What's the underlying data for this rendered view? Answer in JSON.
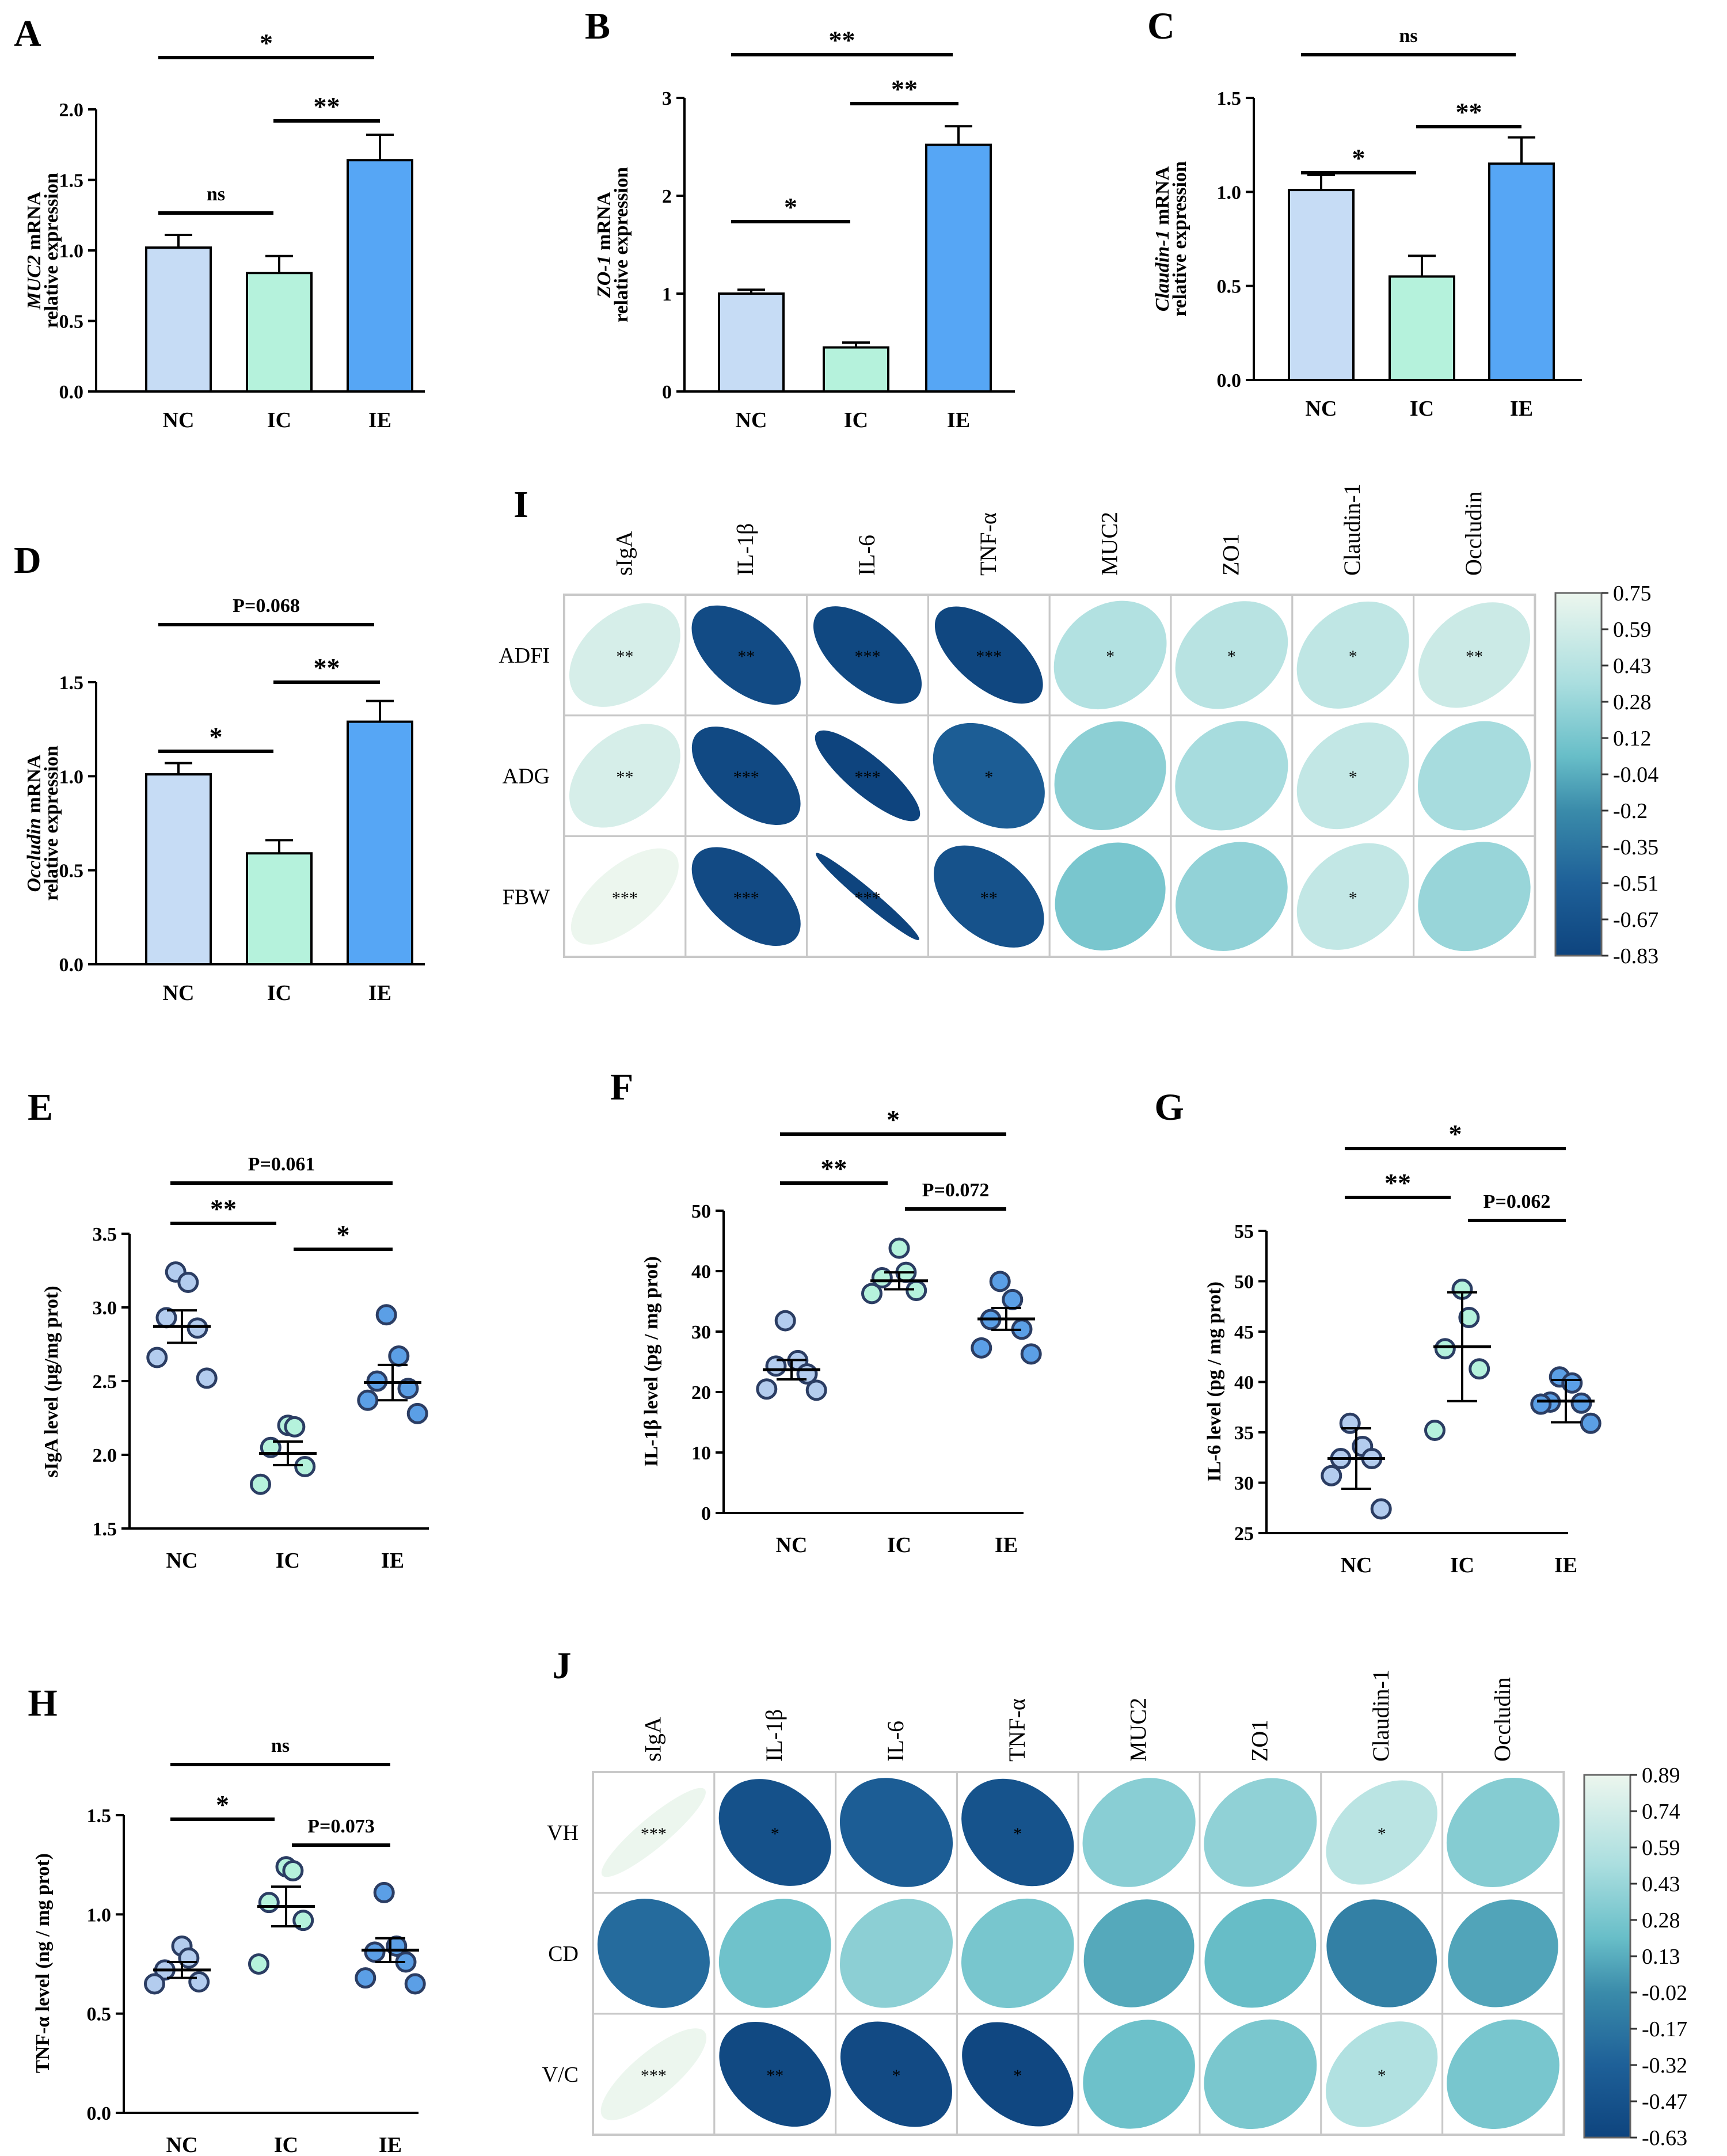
{
  "chart_data": [
    {
      "panel": "A",
      "type": "bar",
      "ylabel_main": "MUC2",
      "ylabel_suffix": " mRNA",
      "ylabel_line2": "relative expression",
      "categories": [
        "NC",
        "IC",
        "IE"
      ],
      "values": [
        1.02,
        0.84,
        1.64
      ],
      "errors": [
        0.09,
        0.12,
        0.18
      ],
      "colors": [
        "#c6dcf5",
        "#b5f2dc",
        "#56a6f5"
      ],
      "ylim": [
        0,
        2.0
      ],
      "ticks": [
        "0.0",
        "0.5",
        "1.0",
        "1.5",
        "2.0"
      ],
      "sig": [
        {
          "from": 0,
          "to": 2,
          "label": "*"
        },
        {
          "from": 1,
          "to": 2,
          "label": "**"
        },
        {
          "from": 0,
          "to": 1,
          "label": "ns"
        }
      ]
    },
    {
      "panel": "B",
      "type": "bar",
      "ylabel_main": "ZO-1",
      "ylabel_suffix": " mRNA",
      "ylabel_line2": "relative expression",
      "categories": [
        "NC",
        "IC",
        "IE"
      ],
      "values": [
        1.0,
        0.45,
        2.52
      ],
      "errors": [
        0.04,
        0.05,
        0.19
      ],
      "colors": [
        "#c6dcf5",
        "#b5f2dc",
        "#56a6f5"
      ],
      "ylim": [
        0,
        3
      ],
      "ticks": [
        "0",
        "1",
        "2",
        "3"
      ],
      "sig": [
        {
          "from": 0,
          "to": 2,
          "label": "**"
        },
        {
          "from": 1,
          "to": 2,
          "label": "**"
        },
        {
          "from": 0,
          "to": 1,
          "label": "*"
        }
      ]
    },
    {
      "panel": "C",
      "type": "bar",
      "ylabel_main": "Claudin-1",
      "ylabel_suffix": " mRNA",
      "ylabel_line2": "relative expression",
      "categories": [
        "NC",
        "IC",
        "IE"
      ],
      "values": [
        1.01,
        0.55,
        1.15
      ],
      "errors": [
        0.08,
        0.11,
        0.14
      ],
      "colors": [
        "#c6dcf5",
        "#b5f2dc",
        "#56a6f5"
      ],
      "ylim": [
        0,
        1.5
      ],
      "ticks": [
        "0.0",
        "0.5",
        "1.0",
        "1.5"
      ],
      "sig": [
        {
          "from": 0,
          "to": 2,
          "label": "ns"
        },
        {
          "from": 1,
          "to": 2,
          "label": "**"
        },
        {
          "from": 0,
          "to": 1,
          "label": "*"
        }
      ]
    },
    {
      "panel": "D",
      "type": "bar",
      "ylabel_main": "Occludin",
      "ylabel_suffix": " mRNA",
      "ylabel_line2": "relative expression",
      "categories": [
        "NC",
        "IC",
        "IE"
      ],
      "values": [
        1.01,
        0.59,
        1.29
      ],
      "errors": [
        0.06,
        0.07,
        0.11
      ],
      "colors": [
        "#c6dcf5",
        "#b5f2dc",
        "#56a6f5"
      ],
      "ylim": [
        0,
        1.5
      ],
      "ticks": [
        "0.0",
        "0.5",
        "1.0",
        "1.5"
      ],
      "sig": [
        {
          "from": 0,
          "to": 2,
          "label": "P=0.068"
        },
        {
          "from": 1,
          "to": 2,
          "label": "**"
        },
        {
          "from": 0,
          "to": 1,
          "label": "*"
        }
      ]
    },
    {
      "panel": "E",
      "type": "scatter",
      "ylabel": "sIgA level (μg/mg prot)",
      "categories": [
        "NC",
        "IC",
        "IE"
      ],
      "points": [
        [
          3.24,
          3.17,
          2.93,
          2.86,
          2.66,
          2.52
        ],
        [
          2.2,
          2.19,
          2.05,
          1.92,
          1.8
        ],
        [
          2.95,
          2.67,
          2.5,
          2.45,
          2.37,
          2.28
        ]
      ],
      "means": [
        2.87,
        2.01,
        2.49
      ],
      "errors": [
        0.11,
        0.08,
        0.12
      ],
      "colors": [
        "#b3ccee",
        "#b5f2dc",
        "#5b9fe6"
      ],
      "ylim": [
        1.5,
        3.5
      ],
      "ticks": [
        "1.5",
        "2.0",
        "2.5",
        "3.0",
        "3.5"
      ],
      "sig": [
        {
          "from": 0,
          "to": 2,
          "label": "P=0.061"
        },
        {
          "from": 0,
          "to": 1,
          "label": "**"
        },
        {
          "from": 1,
          "to": 2,
          "label": "*"
        }
      ]
    },
    {
      "panel": "F",
      "type": "scatter",
      "ylabel": "IL-1β level (pg / mg prot)",
      "categories": [
        "NC",
        "IC",
        "IE"
      ],
      "points": [
        [
          31.8,
          25.2,
          24.3,
          23.0,
          20.5,
          20.3
        ],
        [
          43.8,
          39.8,
          38.9,
          36.8,
          36.3
        ],
        [
          38.3,
          35.3,
          32.0,
          30.4,
          27.3,
          26.3
        ]
      ],
      "means": [
        23.7,
        38.4,
        32.1
      ],
      "errors": [
        1.6,
        1.4,
        1.8
      ],
      "colors": [
        "#b3ccee",
        "#b5f2dc",
        "#5b9fe6"
      ],
      "ylim": [
        0,
        50
      ],
      "ticks": [
        "0",
        "10",
        "20",
        "30",
        "40",
        "50"
      ],
      "sig": [
        {
          "from": 0,
          "to": 2,
          "label": "*"
        },
        {
          "from": 0,
          "to": 1,
          "label": "**"
        },
        {
          "from": 1,
          "to": 2,
          "label": "P=0.072"
        }
      ]
    },
    {
      "panel": "G",
      "type": "scatter",
      "ylabel": "IL-6 level (pg / mg prot)",
      "categories": [
        "NC",
        "IC",
        "IE"
      ],
      "points": [
        [
          35.9,
          33.6,
          32.4,
          32.4,
          30.7,
          27.4
        ],
        [
          49.2,
          46.4,
          43.3,
          41.3,
          35.2
        ],
        [
          40.5,
          39.9,
          38.0,
          37.9,
          37.8,
          35.9
        ]
      ],
      "means": [
        32.4,
        43.5,
        38.1
      ],
      "errors": [
        3.0,
        5.4,
        2.1
      ],
      "colors": [
        "#b3ccee",
        "#b5f2dc",
        "#5b9fe6"
      ],
      "ylim": [
        25,
        55
      ],
      "ticks": [
        "25",
        "30",
        "35",
        "40",
        "45",
        "50",
        "55"
      ],
      "sig": [
        {
          "from": 0,
          "to": 2,
          "label": "*"
        },
        {
          "from": 0,
          "to": 1,
          "label": "**"
        },
        {
          "from": 1,
          "to": 2,
          "label": "P=0.062"
        }
      ]
    },
    {
      "panel": "H",
      "type": "scatter",
      "ylabel": "TNF-α level (ng / mg prot)",
      "categories": [
        "NC",
        "IC",
        "IE"
      ],
      "points": [
        [
          0.84,
          0.78,
          0.72,
          0.66,
          0.65
        ],
        [
          1.24,
          1.22,
          1.06,
          0.97,
          0.75
        ],
        [
          1.11,
          0.84,
          0.81,
          0.76,
          0.68,
          0.65
        ]
      ],
      "means": [
        0.72,
        1.04,
        0.82
      ],
      "errors": [
        0.04,
        0.1,
        0.06
      ],
      "colors": [
        "#b3ccee",
        "#b5f2dc",
        "#5b9fe6"
      ],
      "ylim": [
        0,
        1.5
      ],
      "ticks": [
        "0.0",
        "0.5",
        "1.0",
        "1.5"
      ],
      "sig": [
        {
          "from": 0,
          "to": 2,
          "label": "ns"
        },
        {
          "from": 0,
          "to": 1,
          "label": "*"
        },
        {
          "from": 1,
          "to": 2,
          "label": "P=0.073"
        }
      ]
    },
    {
      "panel": "I",
      "type": "heatmap",
      "columns": [
        "sIgA",
        "IL-1β",
        "IL-6",
        "TNF-α",
        "MUC2",
        "ZO1",
        "Claudin-1",
        "Occludin"
      ],
      "rows": [
        "ADFI",
        "ADG",
        "FBW"
      ],
      "values": [
        [
          0.62,
          -0.75,
          -0.79,
          -0.8,
          0.4,
          0.44,
          0.48,
          0.55
        ],
        [
          0.62,
          -0.77,
          -0.93,
          -0.55,
          0.21,
          0.34,
          0.5,
          0.34
        ],
        [
          0.82,
          -0.76,
          -0.99,
          -0.67,
          0.12,
          0.24,
          0.5,
          0.27
        ]
      ],
      "stars": [
        [
          "**",
          "**",
          "***",
          "***",
          "*",
          "*",
          "*",
          "**"
        ],
        [
          "**",
          "***",
          "***",
          "*",
          "",
          "",
          "*",
          ""
        ],
        [
          "***",
          "***",
          "***",
          "**",
          "",
          "",
          "*",
          ""
        ]
      ],
      "scale_ticks": [
        "0.75",
        "0.59",
        "0.43",
        "0.28",
        "0.12",
        "-0.04",
        "-0.2",
        "-0.35",
        "-0.51",
        "-0.67",
        "-0.83"
      ],
      "range": [
        -0.83,
        0.75
      ]
    },
    {
      "panel": "J",
      "type": "heatmap",
      "columns": [
        "sIgA",
        "IL-1β",
        "IL-6",
        "TNF-α",
        "MUC2",
        "ZO1",
        "Claudin-1",
        "Occludin"
      ],
      "rows": [
        "VH",
        "CD",
        "V/C"
      ],
      "values": [
        [
          0.96,
          -0.49,
          -0.36,
          -0.47,
          0.36,
          0.39,
          0.6,
          0.34
        ],
        [
          -0.25,
          0.24,
          0.37,
          0.28,
          0.11,
          0.2,
          -0.1,
          0.09
        ],
        [
          0.91,
          -0.58,
          -0.56,
          -0.6,
          0.23,
          0.29,
          0.55,
          0.28
        ]
      ],
      "stars": [
        [
          "***",
          "*",
          "",
          "*",
          "",
          "",
          "*",
          ""
        ],
        [
          "",
          "",
          "",
          "",
          "",
          "",
          "",
          ""
        ],
        [
          "***",
          "**",
          "*",
          "*",
          "",
          "",
          "*",
          ""
        ]
      ],
      "scale_ticks": [
        "0.89",
        "0.74",
        "0.59",
        "0.43",
        "0.28",
        "0.13",
        "-0.02",
        "-0.17",
        "-0.32",
        "-0.47",
        "-0.63"
      ],
      "range": [
        -0.63,
        0.89
      ]
    }
  ]
}
